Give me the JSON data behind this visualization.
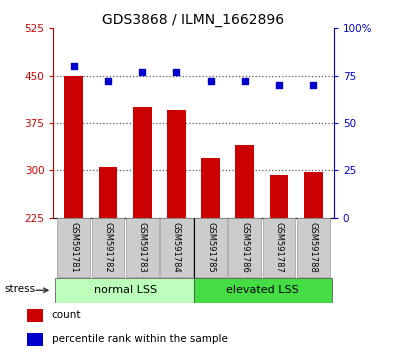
{
  "title": "GDS3868 / ILMN_1662896",
  "samples": [
    "GSM591781",
    "GSM591782",
    "GSM591783",
    "GSM591784",
    "GSM591785",
    "GSM591786",
    "GSM591787",
    "GSM591788"
  ],
  "bar_values": [
    450,
    305,
    400,
    395,
    320,
    340,
    292,
    298
  ],
  "percentile_values": [
    80,
    72,
    77,
    77,
    72,
    72,
    70,
    70
  ],
  "bar_color": "#cc0000",
  "percentile_color": "#0000cc",
  "ylim_left": [
    225,
    525
  ],
  "ylim_right": [
    0,
    100
  ],
  "yticks_left": [
    225,
    300,
    375,
    450,
    525
  ],
  "yticks_right": [
    0,
    25,
    50,
    75,
    100
  ],
  "groups": [
    {
      "label": "normal LSS",
      "start": 0,
      "end": 4,
      "color": "#bbffbb"
    },
    {
      "label": "elevated LSS",
      "start": 4,
      "end": 8,
      "color": "#44dd44"
    }
  ],
  "group_bg_light": "#bbffbb",
  "group_bg_dark": "#44dd44",
  "left_tick_color": "#cc0000",
  "right_tick_color": "#0000cc",
  "stress_label": "stress",
  "legend_count_label": "count",
  "legend_pct_label": "percentile rank within the sample",
  "plot_bg": "#ffffff",
  "sample_box_color": "#cccccc",
  "dotted_line_color": "#555555",
  "hline_values": [
    300,
    375,
    450
  ]
}
